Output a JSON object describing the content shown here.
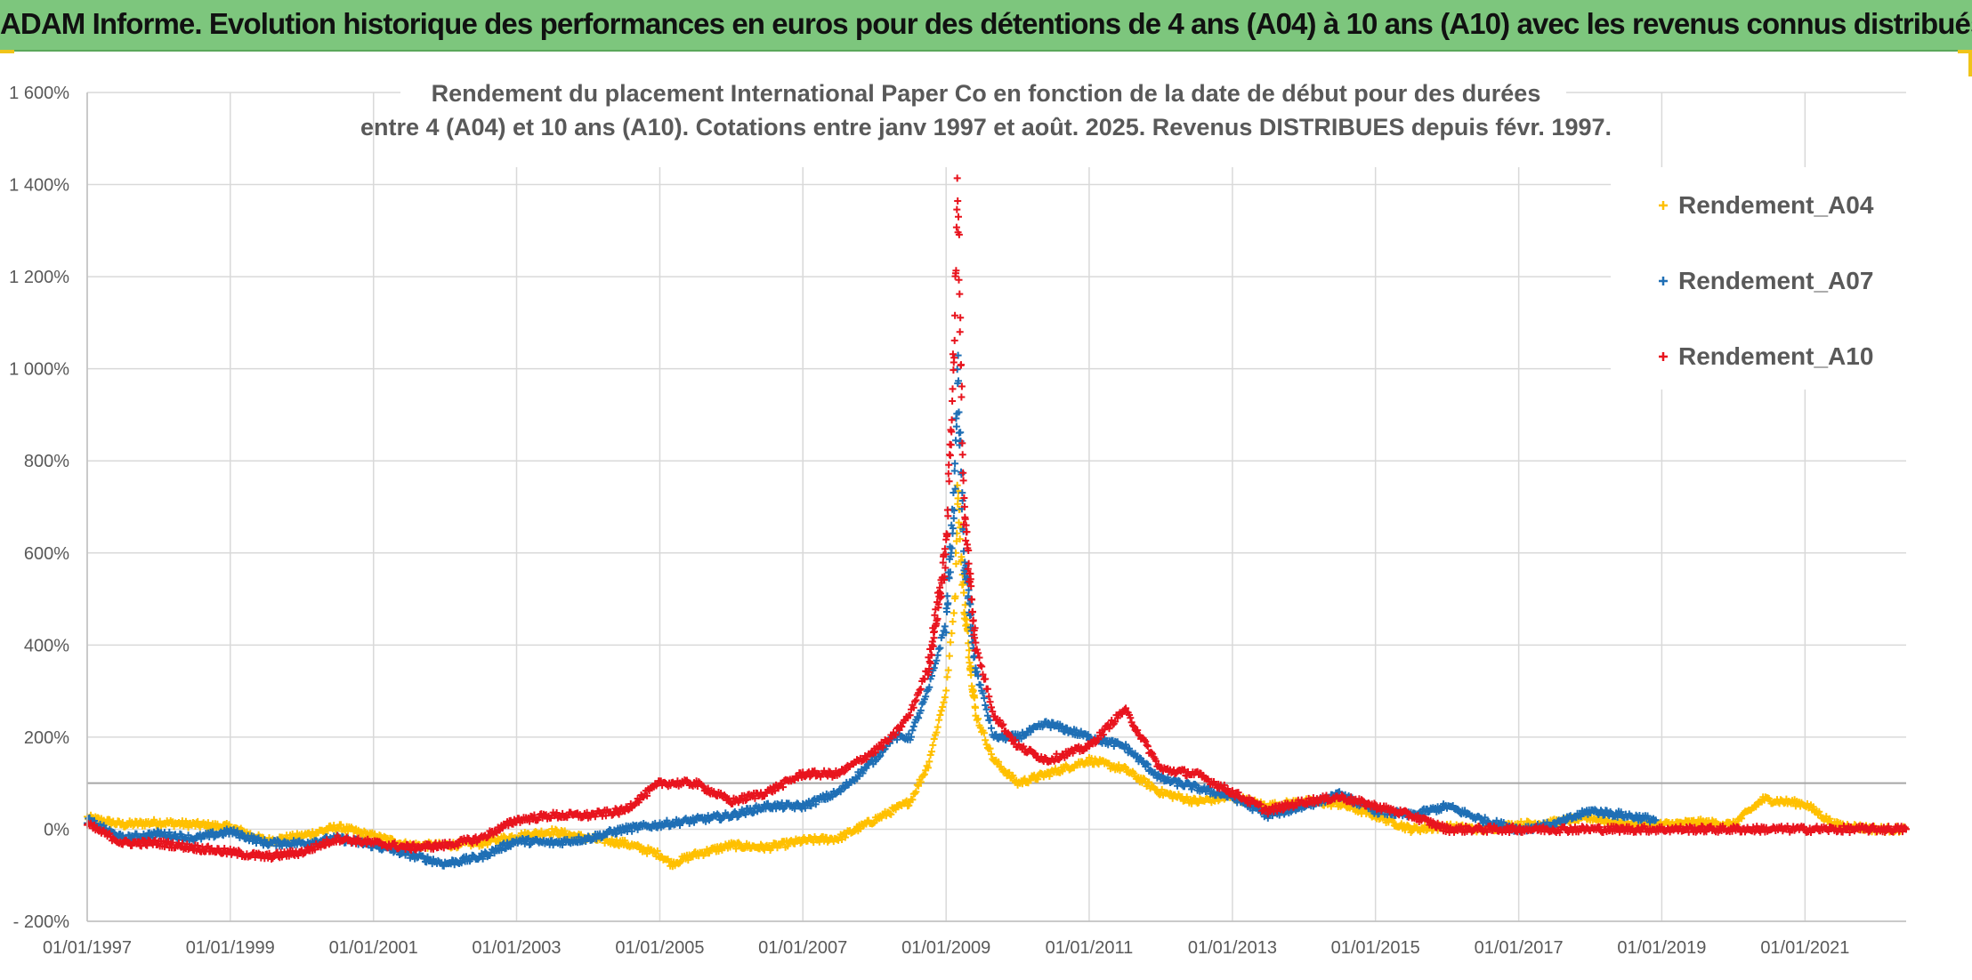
{
  "banner": {
    "title": "ADAM Informe. Evolution historique des performances en euros pour des détentions de 4 ans (A04) à 10 ans (A10) avec les revenus connus distribués"
  },
  "colors": {
    "banner_bg": "#7dc67d",
    "A04": "#ffc000",
    "A07": "#1f6fb5",
    "A10": "#e8141e",
    "grid": "#d9d9d9",
    "ref_line": "#a6a6a6"
  },
  "chart_data": {
    "type": "scatter",
    "title_lines": [
      "Rendement du placement International Paper Co en fonction de la date de début pour des durées",
      "entre 4 (A04) et 10 ans (A10). Cotations entre janv 1997 et août. 2025. Revenus DISTRIBUES depuis févr. 1997."
    ],
    "y_unit": "%",
    "ylim": [
      -200,
      1600
    ],
    "yticks": [
      -200,
      0,
      200,
      400,
      600,
      800,
      1000,
      1200,
      1400,
      1600
    ],
    "ytick_labels": [
      "- 200%",
      "0%",
      "200%",
      "400%",
      "600%",
      "800%",
      "1 000%",
      "1 200%",
      "1 400%",
      "1 600%"
    ],
    "xlim": [
      "1997-01-01",
      "2022-06-01"
    ],
    "xtick_labels": [
      "01/01/1997",
      "01/01/1999",
      "01/01/2001",
      "01/01/2003",
      "01/01/2005",
      "01/01/2007",
      "01/01/2009",
      "01/01/2011",
      "01/01/2013",
      "01/01/2015",
      "01/01/2017",
      "01/01/2019",
      "01/01/2021"
    ],
    "reference_line_y": 100,
    "grid": true,
    "legend_position": "top-right",
    "marker": "+",
    "series": [
      {
        "name": "Rendement_A04",
        "points": [
          [
            "1997-01-01",
            25
          ],
          [
            "1997-07-01",
            10
          ],
          [
            "1998-01-01",
            15
          ],
          [
            "1998-07-01",
            10
          ],
          [
            "1999-01-01",
            5
          ],
          [
            "1999-07-01",
            -25
          ],
          [
            "2000-01-01",
            -15
          ],
          [
            "2000-07-01",
            5
          ],
          [
            "2001-01-01",
            -15
          ],
          [
            "2001-07-01",
            -35
          ],
          [
            "2002-01-01",
            -35
          ],
          [
            "2002-07-01",
            -30
          ],
          [
            "2003-01-01",
            -15
          ],
          [
            "2003-07-01",
            -5
          ],
          [
            "2004-01-01",
            -20
          ],
          [
            "2004-07-01",
            -30
          ],
          [
            "2005-01-01",
            -55
          ],
          [
            "2005-03-01",
            -75
          ],
          [
            "2005-07-01",
            -55
          ],
          [
            "2006-01-01",
            -35
          ],
          [
            "2006-07-01",
            -40
          ],
          [
            "2007-01-01",
            -25
          ],
          [
            "2007-07-01",
            -20
          ],
          [
            "2008-01-01",
            20
          ],
          [
            "2008-07-01",
            60
          ],
          [
            "2008-10-01",
            140
          ],
          [
            "2009-01-01",
            300
          ],
          [
            "2009-02-15",
            500
          ],
          [
            "2009-03-01",
            750
          ],
          [
            "2009-04-01",
            500
          ],
          [
            "2009-06-01",
            250
          ],
          [
            "2009-09-01",
            150
          ],
          [
            "2010-01-01",
            100
          ],
          [
            "2010-06-01",
            120
          ],
          [
            "2011-01-01",
            150
          ],
          [
            "2011-07-01",
            130
          ],
          [
            "2012-01-01",
            80
          ],
          [
            "2012-07-01",
            60
          ],
          [
            "2013-01-01",
            70
          ],
          [
            "2013-07-01",
            50
          ],
          [
            "2014-01-01",
            60
          ],
          [
            "2014-07-01",
            55
          ],
          [
            "2015-01-01",
            30
          ],
          [
            "2015-07-01",
            0
          ],
          [
            "2016-01-01",
            5
          ],
          [
            "2016-07-01",
            0
          ],
          [
            "2017-01-01",
            10
          ],
          [
            "2017-07-01",
            15
          ],
          [
            "2018-01-01",
            25
          ],
          [
            "2018-07-01",
            10
          ],
          [
            "2019-01-01",
            10
          ],
          [
            "2019-07-01",
            15
          ],
          [
            "2020-01-01",
            10
          ],
          [
            "2020-06-01",
            65
          ],
          [
            "2021-01-01",
            55
          ],
          [
            "2021-06-01",
            10
          ],
          [
            "2022-01-01",
            0
          ],
          [
            "2022-06-01",
            0
          ]
        ]
      },
      {
        "name": "Rendement_A07",
        "points": [
          [
            "1997-01-01",
            20
          ],
          [
            "1997-07-01",
            -20
          ],
          [
            "1998-01-01",
            -10
          ],
          [
            "1998-07-01",
            -20
          ],
          [
            "1999-01-01",
            -5
          ],
          [
            "1999-07-01",
            -30
          ],
          [
            "2000-01-01",
            -30
          ],
          [
            "2000-07-01",
            -20
          ],
          [
            "2001-01-01",
            -35
          ],
          [
            "2001-07-01",
            -55
          ],
          [
            "2002-01-01",
            -75
          ],
          [
            "2002-07-01",
            -60
          ],
          [
            "2003-01-01",
            -25
          ],
          [
            "2003-07-01",
            -30
          ],
          [
            "2004-01-01",
            -20
          ],
          [
            "2004-07-01",
            0
          ],
          [
            "2005-01-01",
            10
          ],
          [
            "2005-07-01",
            20
          ],
          [
            "2006-01-01",
            30
          ],
          [
            "2006-07-01",
            50
          ],
          [
            "2007-01-01",
            50
          ],
          [
            "2007-07-01",
            80
          ],
          [
            "2008-01-01",
            150
          ],
          [
            "2008-04-01",
            200
          ],
          [
            "2008-07-01",
            200
          ],
          [
            "2008-10-01",
            300
          ],
          [
            "2009-01-01",
            450
          ],
          [
            "2009-02-15",
            750
          ],
          [
            "2009-03-01",
            1000
          ],
          [
            "2009-04-01",
            600
          ],
          [
            "2009-06-01",
            350
          ],
          [
            "2009-09-01",
            200
          ],
          [
            "2010-01-01",
            200
          ],
          [
            "2010-06-01",
            230
          ],
          [
            "2011-01-01",
            200
          ],
          [
            "2011-07-01",
            180
          ],
          [
            "2012-01-01",
            110
          ],
          [
            "2012-07-01",
            90
          ],
          [
            "2013-01-01",
            70
          ],
          [
            "2013-07-01",
            30
          ],
          [
            "2014-01-01",
            50
          ],
          [
            "2014-07-01",
            75
          ],
          [
            "2015-01-01",
            40
          ],
          [
            "2015-07-01",
            30
          ],
          [
            "2016-01-01",
            50
          ],
          [
            "2016-07-01",
            20
          ],
          [
            "2017-01-01",
            0
          ],
          [
            "2017-07-01",
            10
          ],
          [
            "2018-01-01",
            40
          ],
          [
            "2018-07-01",
            30
          ],
          [
            "2018-12-01",
            20
          ]
        ]
      },
      {
        "name": "Rendement_A10",
        "points": [
          [
            "1997-01-01",
            10
          ],
          [
            "1997-07-01",
            -30
          ],
          [
            "1998-01-01",
            -30
          ],
          [
            "1998-07-01",
            -40
          ],
          [
            "1999-01-01",
            -50
          ],
          [
            "1999-07-01",
            -60
          ],
          [
            "2000-01-01",
            -50
          ],
          [
            "2000-07-01",
            -20
          ],
          [
            "2001-01-01",
            -30
          ],
          [
            "2001-07-01",
            -40
          ],
          [
            "2002-01-01",
            -35
          ],
          [
            "2002-07-01",
            -20
          ],
          [
            "2003-01-01",
            20
          ],
          [
            "2003-07-01",
            30
          ],
          [
            "2004-01-01",
            30
          ],
          [
            "2004-07-01",
            40
          ],
          [
            "2005-01-01",
            100
          ],
          [
            "2005-07-01",
            100
          ],
          [
            "2006-01-01",
            60
          ],
          [
            "2006-07-01",
            80
          ],
          [
            "2007-01-01",
            120
          ],
          [
            "2007-07-01",
            120
          ],
          [
            "2008-01-01",
            170
          ],
          [
            "2008-04-01",
            200
          ],
          [
            "2008-07-01",
            250
          ],
          [
            "2008-10-01",
            350
          ],
          [
            "2009-01-01",
            600
          ],
          [
            "2009-02-15",
            1100
          ],
          [
            "2009-03-01",
            1400
          ],
          [
            "2009-04-01",
            700
          ],
          [
            "2009-06-01",
            400
          ],
          [
            "2009-09-01",
            250
          ],
          [
            "2010-01-01",
            180
          ],
          [
            "2010-06-01",
            150
          ],
          [
            "2011-01-01",
            180
          ],
          [
            "2011-07-01",
            260
          ],
          [
            "2012-01-01",
            130
          ],
          [
            "2012-07-01",
            120
          ],
          [
            "2013-01-01",
            80
          ],
          [
            "2013-07-01",
            40
          ],
          [
            "2014-01-01",
            60
          ],
          [
            "2014-07-01",
            70
          ],
          [
            "2015-01-01",
            50
          ],
          [
            "2015-07-01",
            30
          ],
          [
            "2016-01-01",
            0
          ],
          [
            "2017-01-01",
            0
          ],
          [
            "2018-01-01",
            0
          ],
          [
            "2019-01-01",
            0
          ],
          [
            "2020-01-01",
            0
          ],
          [
            "2021-01-01",
            0
          ],
          [
            "2022-06-01",
            0
          ]
        ]
      }
    ]
  }
}
